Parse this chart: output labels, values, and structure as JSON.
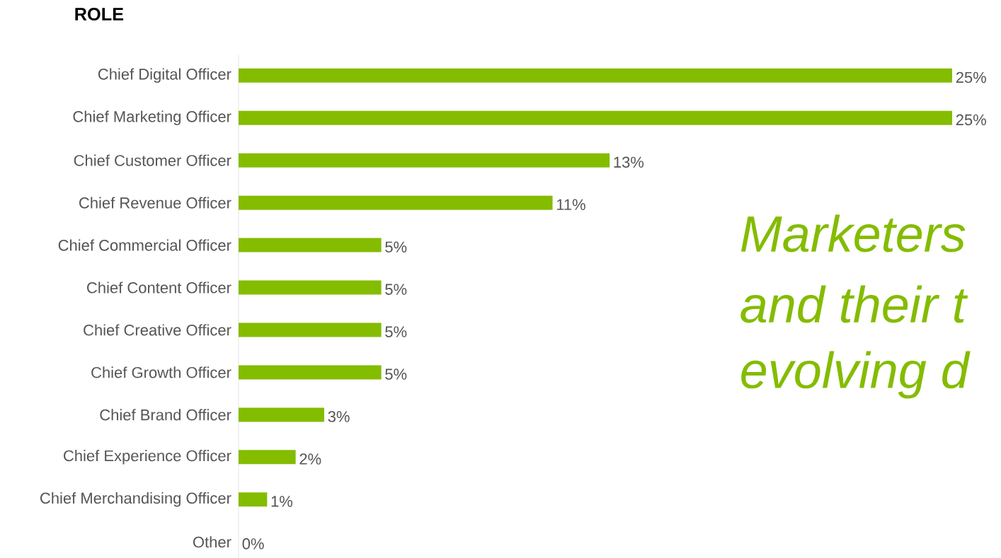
{
  "chart_data": {
    "type": "bar",
    "orientation": "horizontal",
    "title": "ROLE",
    "categories": [
      "Chief Digital Officer",
      "Chief Marketing Officer",
      "Chief Customer Officer",
      "Chief Revenue Officer",
      "Chief Commercial Officer",
      "Chief Content Officer",
      "Chief Creative Officer",
      "Chief Growth Officer",
      "Chief Brand Officer",
      "Chief Experience Officer",
      "Chief Merchandising Officer",
      "Other"
    ],
    "values": [
      25,
      25,
      13,
      11,
      5,
      5,
      5,
      5,
      3,
      2,
      1,
      0
    ],
    "value_labels": [
      "25%",
      "25%",
      "13%",
      "11%",
      "5%",
      "5%",
      "5%",
      "5%",
      "3%",
      "2%",
      "1%",
      "0%"
    ],
    "color": "#84bc00",
    "annotations": [
      "Marketers",
      "and their t",
      "evolving d"
    ]
  }
}
